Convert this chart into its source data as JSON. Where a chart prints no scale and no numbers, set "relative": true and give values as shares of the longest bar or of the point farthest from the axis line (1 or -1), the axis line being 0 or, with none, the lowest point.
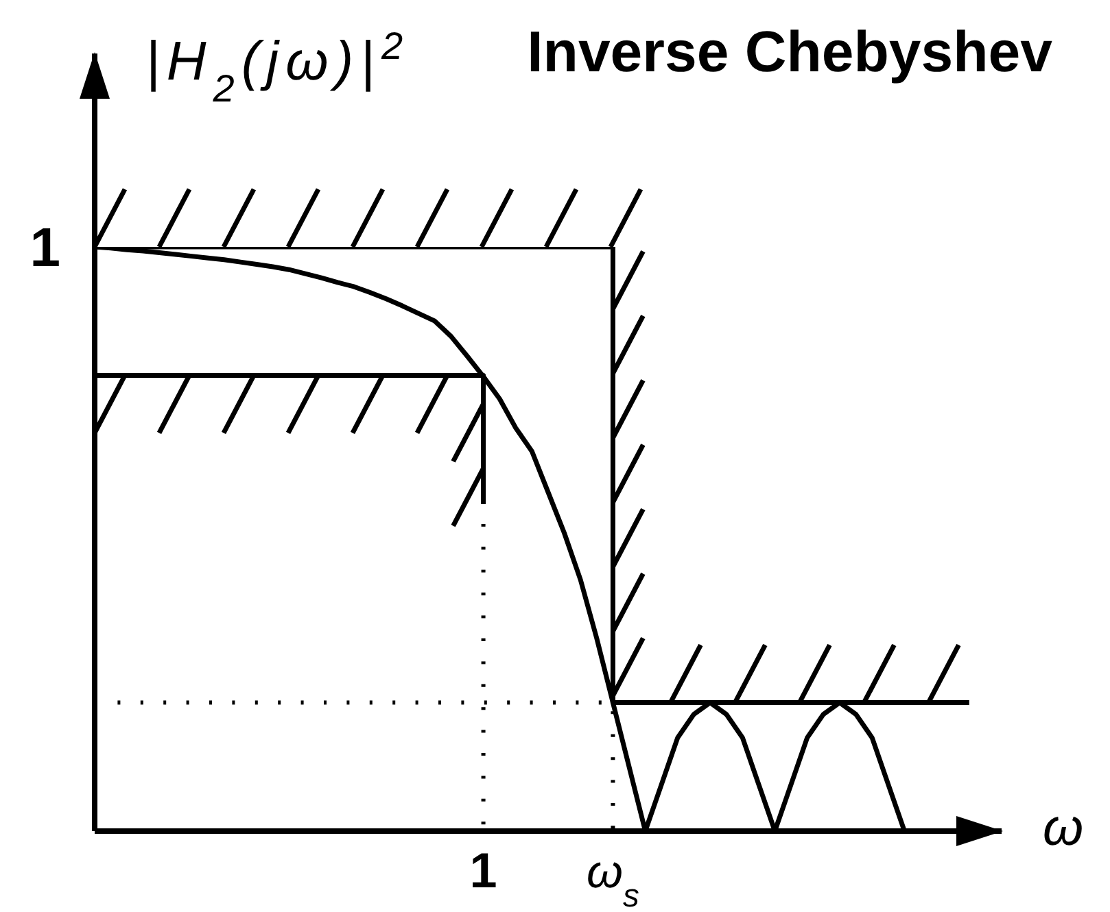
{
  "chart_data": {
    "type": "line",
    "title": "Inverse Chebyshev",
    "xlabel": "ω",
    "ylabel": "|H$_{2}$(jω)|$^{2}$",
    "relative": true,
    "categories": [
      null,
      null,
      null,
      null,
      null,
      null,
      null,
      null,
      null,
      null,
      null,
      null,
      null,
      null,
      null,
      null,
      null,
      null,
      null,
      null,
      null,
      null,
      null,
      null,
      "1",
      null,
      null,
      null,
      null,
      null,
      null,
      null,
      "ω$_{s}$",
      null,
      null,
      null,
      null,
      null,
      null,
      null,
      null,
      null,
      null,
      null,
      null,
      null,
      null,
      null,
      null,
      null,
      null,
      null,
      null,
      null,
      null,
      null,
      null
    ],
    "annotations": [
      "1"
    ],
    "series": [
      {
        "color": "#000000",
        "values": [
          1,
          0.998,
          0.995,
          0.993,
          0.99,
          0.987,
          0.984,
          0.981,
          0.978,
          0.974,
          0.97,
          0.966,
          0.961,
          0.954,
          0.947,
          0.939,
          0.932,
          0.922,
          0.911,
          0.899,
          0.886,
          0.873,
          0.847,
          0.813,
          0.778,
          0.74,
          0.69,
          0.65,
          0.58,
          0.51,
          0.43,
          0.33,
          0.22,
          0.11,
          0,
          0.08,
          0.16,
          0.2,
          0.22,
          0.2,
          0.16,
          0.08,
          0,
          0.08,
          0.16,
          0.2,
          0.22,
          0.2,
          0.16,
          0.08,
          0,
          null,
          null,
          null,
          null,
          null,
          null
        ]
      },
      {
        "type": "step",
        "color": "#000000",
        "values": [
          1,
          1,
          1,
          1,
          1,
          1,
          1,
          1,
          1,
          1,
          1,
          1,
          1,
          1,
          1,
          1,
          1,
          1,
          1,
          1,
          1,
          1,
          1,
          1,
          1,
          1,
          1,
          1,
          1,
          1,
          1,
          1,
          0.22,
          0.22,
          0.22,
          0.22,
          0.22,
          0.22,
          0.22,
          0.22,
          0.22,
          0.22,
          0.22,
          0.22,
          0.22,
          0.22,
          0.22,
          0.22,
          0.22,
          0.22,
          0.22,
          0.22,
          0.22,
          0.22,
          0.22,
          null,
          null
        ]
      },
      {
        "type": "step",
        "color": "#000000",
        "values": [
          0.78,
          0.78,
          0.78,
          0.78,
          0.78,
          0.78,
          0.78,
          0.78,
          0.78,
          0.78,
          0.78,
          0.78,
          0.78,
          0.78,
          0.78,
          0.78,
          0.78,
          0.78,
          0.78,
          0.78,
          0.78,
          0.78,
          0.78,
          0.78,
          0.56,
          null,
          null,
          null,
          null,
          null,
          null,
          null,
          null,
          null,
          null,
          null,
          null,
          null,
          null,
          null,
          null,
          null,
          null,
          null,
          null,
          null,
          null,
          null,
          null,
          null,
          null,
          null,
          null,
          null,
          null,
          null,
          null
        ]
      },
      {
        "type": "step",
        "color": "#000000",
        "line_style": "dotted",
        "values": [
          0.22,
          0.22,
          0.22,
          0.22,
          0.22,
          0.22,
          0.22,
          0.22,
          0.22,
          0.22,
          0.22,
          0.22,
          0.22,
          0.22,
          0.22,
          0.22,
          0.22,
          0.22,
          0.22,
          0.22,
          0.22,
          0.22,
          0.22,
          0.22,
          0.22,
          0.22,
          0.22,
          0.22,
          0.22,
          0.22,
          0.22,
          0.22,
          0,
          null,
          null,
          null,
          null,
          null,
          null,
          null,
          null,
          null,
          null,
          null,
          null,
          null,
          null,
          null,
          null,
          null,
          null,
          null,
          null,
          null,
          null,
          null,
          null
        ]
      },
      {
        "type": "step",
        "color": "#000000",
        "line_style": "dotted",
        "values": [
          null,
          null,
          null,
          null,
          null,
          null,
          null,
          null,
          null,
          null,
          null,
          null,
          null,
          null,
          null,
          null,
          null,
          null,
          null,
          null,
          null,
          null,
          null,
          0,
          0.56,
          null,
          null,
          null,
          null,
          null,
          null,
          null,
          null,
          null,
          null,
          null,
          null,
          null,
          null,
          null,
          null,
          null,
          null,
          null,
          null,
          null,
          null,
          null,
          null,
          null,
          null,
          null,
          null,
          null,
          null,
          null,
          null
        ]
      }
    ]
  }
}
